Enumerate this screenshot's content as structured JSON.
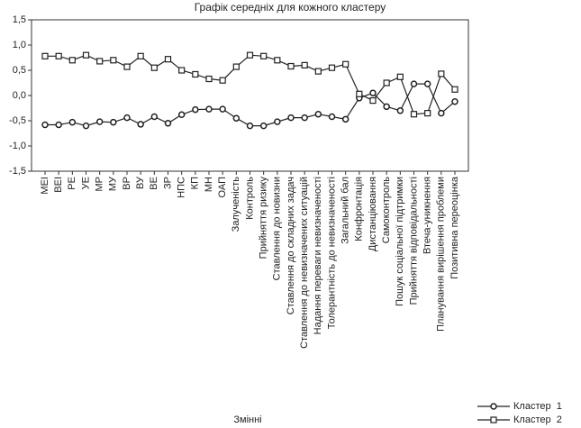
{
  "chart_data": {
    "type": "line",
    "title": "Графік середніх для кожного кластеру",
    "x_label": "Змінні",
    "categories": [
      "МЕІ",
      "ВЕІ",
      "РЕ",
      "УЕ",
      "МР",
      "МУ",
      "ВР",
      "ВУ",
      "ВЕ",
      "ЗР",
      "НПС",
      "КП",
      "МН",
      "ОАП",
      "Залученість",
      "Контроль",
      "Прийняття ризику",
      "Ставлення до новизни",
      "Ставлення до складних задач",
      "Ставлення до невизначених ситуацій",
      "Надання переваги невизначеності",
      "Толерантність до невизначеності",
      "Загальний бал",
      "Конфронтація",
      "Дистанціювання",
      "Самоконтроль",
      "Пошук соціальної підтримки",
      "Прийняття відповідальності",
      "Втеча-уникнення",
      "Планування вирішення проблеми",
      "Позитивна переоцінка"
    ],
    "series": [
      {
        "name": "Кластер  1",
        "color": "#222222",
        "marker": "circle",
        "values": [
          -0.58,
          -0.58,
          -0.53,
          -0.6,
          -0.52,
          -0.53,
          -0.44,
          -0.57,
          -0.42,
          -0.55,
          -0.38,
          -0.28,
          -0.27,
          -0.27,
          -0.45,
          -0.6,
          -0.6,
          -0.52,
          -0.44,
          -0.44,
          -0.37,
          -0.42,
          -0.47,
          -0.05,
          0.05,
          -0.22,
          -0.3,
          0.23,
          0.23,
          -0.35,
          -0.12
        ]
      },
      {
        "name": "Кластер  2",
        "color": "#222222",
        "marker": "square",
        "values": [
          0.78,
          0.78,
          0.7,
          0.8,
          0.68,
          0.7,
          0.57,
          0.78,
          0.55,
          0.72,
          0.5,
          0.42,
          0.33,
          0.3,
          0.57,
          0.8,
          0.78,
          0.7,
          0.58,
          0.6,
          0.48,
          0.55,
          0.62,
          0.03,
          -0.1,
          0.25,
          0.37,
          -0.37,
          -0.35,
          0.43,
          0.12
        ]
      }
    ],
    "ylim": [
      -1.5,
      1.5
    ],
    "yticks": [
      {
        "value": -1.5,
        "label": "-1,5"
      },
      {
        "value": -1.0,
        "label": "-1,0"
      },
      {
        "value": -0.5,
        "label": "-0,5"
      },
      {
        "value": 0,
        "label": "0,0"
      },
      {
        "value": 0.5,
        "label": "0,5"
      },
      {
        "value": 1.0,
        "label": "1,0"
      },
      {
        "value": 1.5,
        "label": "1,5"
      }
    ],
    "legend": "bottom-right"
  }
}
